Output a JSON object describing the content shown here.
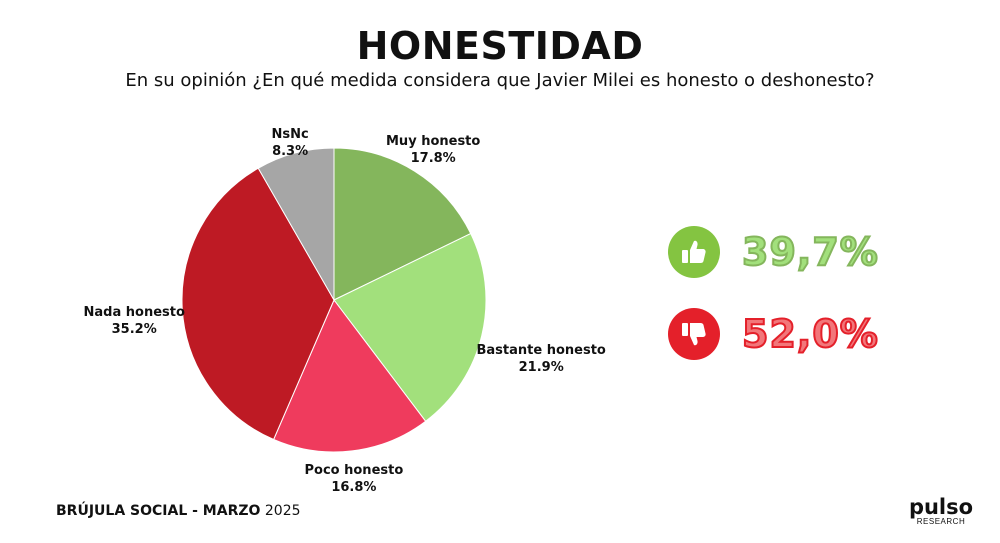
{
  "title": "HONESTIDAD",
  "subtitle": "En su opinión ¿En qué medida considera que Javier Milei es honesto o deshonesto?",
  "chart_data": {
    "type": "pie",
    "title": "HONESTIDAD",
    "slices": [
      {
        "label": "Muy honesto",
        "value": 17.8,
        "value_text": "17.8%",
        "color": "#84b65c"
      },
      {
        "label": "Bastante honesto",
        "value": 21.9,
        "value_text": "21.9%",
        "color": "#a2e07c"
      },
      {
        "label": "Poco honesto",
        "value": 16.8,
        "value_text": "16.8%",
        "color": "#ef3b5d"
      },
      {
        "label": "Nada honesto",
        "value": 35.2,
        "value_text": "35.2%",
        "color": "#be1a24"
      },
      {
        "label": "NsNc",
        "value": 8.3,
        "value_text": "8.3%",
        "color": "#a6a6a6"
      }
    ],
    "start": "12 o'clock",
    "direction": "clockwise"
  },
  "summary": {
    "positive": {
      "value": "39,7%",
      "icon": "thumbs-up-icon",
      "circle_color": "#84c441",
      "text_color": "#a2e07c",
      "stroke_color": "#84b65c"
    },
    "negative": {
      "value": "52,0%",
      "icon": "thumbs-down-icon",
      "circle_color": "#e4202a",
      "text_color": "#f2767a",
      "stroke_color": "#e4202a"
    }
  },
  "footer": {
    "brand": "BRÚJULA SOCIAL - MARZO",
    "year": "2025"
  },
  "logo": {
    "name": "pulso",
    "subtitle": "RESEARCH"
  }
}
